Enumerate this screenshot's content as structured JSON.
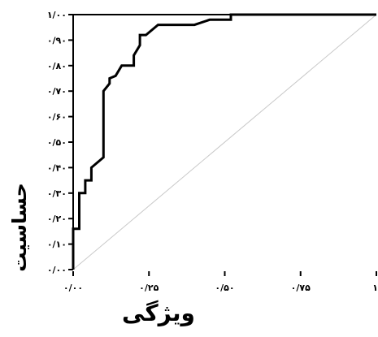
{
  "chart_data": {
    "type": "line",
    "xlabel": "ویژگی",
    "ylabel": "حساسیت",
    "xlim": [
      0,
      1
    ],
    "ylim": [
      0,
      1
    ],
    "x_ticks": [
      {
        "value": 0.0,
        "label": "۰/۰۰"
      },
      {
        "value": 0.25,
        "label": "۰/۲۵"
      },
      {
        "value": 0.5,
        "label": "۰/۵۰"
      },
      {
        "value": 0.75,
        "label": "۰/۷۵"
      },
      {
        "value": 1.0,
        "label": "۱"
      }
    ],
    "y_ticks": [
      {
        "value": 0.0,
        "label": "۰/۰۰"
      },
      {
        "value": 0.1,
        "label": "۰/۱۰"
      },
      {
        "value": 0.2,
        "label": "۰/۲۰"
      },
      {
        "value": 0.3,
        "label": "۰/۳۰"
      },
      {
        "value": 0.4,
        "label": "۰/۴۰"
      },
      {
        "value": 0.5,
        "label": "۰/۵۰"
      },
      {
        "value": 0.6,
        "label": "۰/۶۰"
      },
      {
        "value": 0.7,
        "label": "۰/۷۰"
      },
      {
        "value": 0.8,
        "label": "۰/۸۰"
      },
      {
        "value": 0.9,
        "label": "۰/۹۰"
      },
      {
        "value": 1.0,
        "label": "۱/۰۰"
      }
    ],
    "grid": false,
    "series": [
      {
        "points": [
          [
            0.0,
            0.0
          ],
          [
            0.0,
            0.16
          ],
          [
            0.02,
            0.16
          ],
          [
            0.02,
            0.3
          ],
          [
            0.04,
            0.3
          ],
          [
            0.04,
            0.35
          ],
          [
            0.06,
            0.35
          ],
          [
            0.06,
            0.4
          ],
          [
            0.08,
            0.42
          ],
          [
            0.1,
            0.44
          ],
          [
            0.1,
            0.7
          ],
          [
            0.12,
            0.73
          ],
          [
            0.12,
            0.75
          ],
          [
            0.14,
            0.76
          ],
          [
            0.16,
            0.8
          ],
          [
            0.2,
            0.8
          ],
          [
            0.2,
            0.84
          ],
          [
            0.22,
            0.88
          ],
          [
            0.22,
            0.92
          ],
          [
            0.24,
            0.92
          ],
          [
            0.28,
            0.96
          ],
          [
            0.4,
            0.96
          ],
          [
            0.45,
            0.98
          ],
          [
            0.52,
            0.98
          ],
          [
            0.52,
            1.0
          ],
          [
            1.0,
            1.0
          ]
        ],
        "color": "#000000"
      },
      {
        "points": [
          [
            0,
            0
          ],
          [
            1,
            1
          ]
        ],
        "color": "#c8c8c8"
      }
    ]
  }
}
